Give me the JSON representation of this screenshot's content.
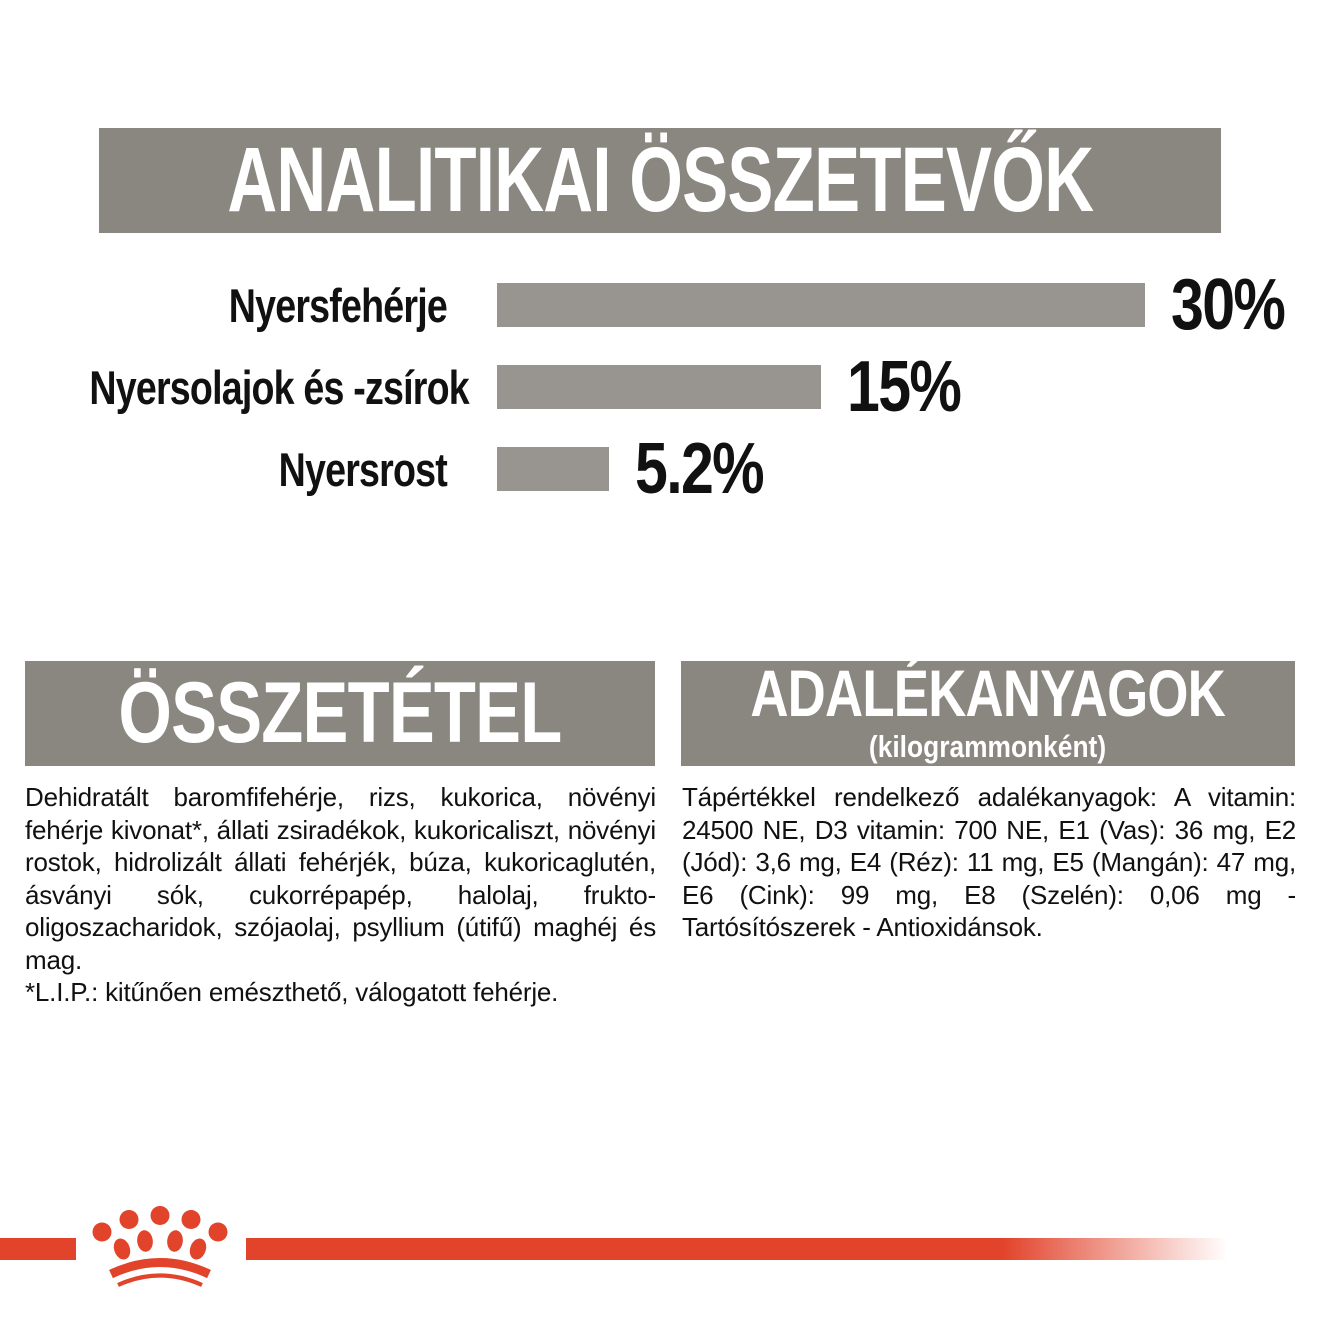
{
  "analytics": {
    "title": "ANALITIKAI ÖSSZETEVŐK"
  },
  "chart_data": {
    "type": "bar",
    "orientation": "horizontal",
    "title": "ANALITIKAI ÖSSZETEVŐK",
    "categories": [
      "Nyersfehérje",
      "Nyersolajok és -zsírok",
      "Nyersrost"
    ],
    "values": [
      30,
      15,
      5.2
    ],
    "value_labels": [
      "30%",
      "15%",
      "5.2%"
    ],
    "unit": "%",
    "xlim": [
      0,
      30
    ],
    "grid": false,
    "bar_color": "#98948F"
  },
  "composition": {
    "title": "ÖSSZETÉTEL",
    "body": "Dehidratált baromfifehérje, rizs, kukorica, növényi fehérje kivonat*, állati zsiradékok, kukoricaliszt, növényi rostok, hidrolizált állati fehérjék, búza, kukoricaglutén, ásványi sók, cukorrépapép, halolaj, frukto-oligoszacharidok, szójaolaj, psyllium (útifű) maghéj és mag.",
    "note": "*L.I.P.: kitűnően emészthető, válogatott fehérje."
  },
  "additives": {
    "title": "ADALÉKANYAGOK",
    "subtitle": "(kilogrammonként)",
    "body": "Tápértékkel rendelkező adalékanyagok: A vitamin: 24500 NE, D3 vitamin: 700 NE, E1 (Vas): 36 mg, E2 (Jód): 3,6 mg, E4 (Réz): 11 mg, E5 (Mangán): 47 mg, E6 (Cink): 99 mg, E8 (Szelén): 0,06 mg - Tartósítószerek - Antioxidánsok."
  },
  "brand": {
    "logo": "royal-canin-crown",
    "stripe_color": "#E2432B"
  },
  "colors": {
    "header_bg": "#8A8680",
    "bar_fill": "#98948F",
    "accent_red": "#E2432B",
    "text": "#111111",
    "header_text": "#FFFFFF"
  }
}
